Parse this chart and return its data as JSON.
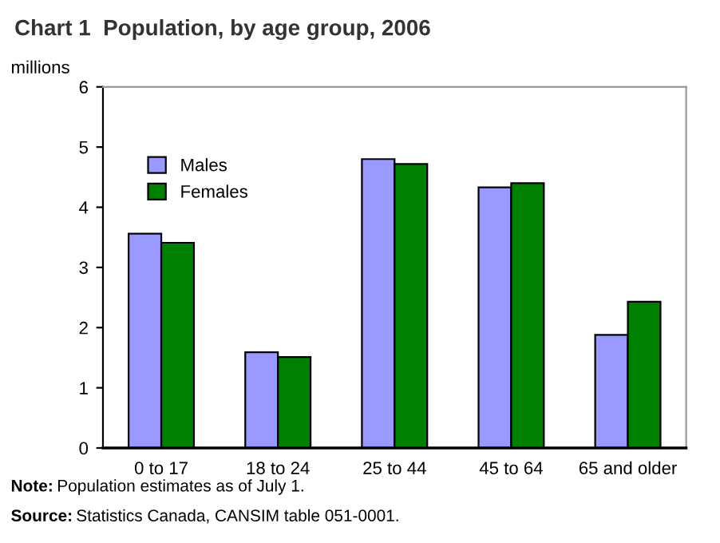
{
  "chart_data": {
    "type": "bar",
    "title": "Chart 1  Population, by age group, 2006",
    "ylabel": "millions",
    "categories": [
      "0 to 17",
      "18 to 24",
      "25 to 44",
      "45 to 64",
      "65 and older"
    ],
    "series": [
      {
        "name": "Males",
        "color": "#9999ff",
        "values": [
          3.56,
          1.59,
          4.8,
          4.33,
          1.88
        ]
      },
      {
        "name": "Females",
        "color": "#008000",
        "values": [
          3.41,
          1.51,
          4.72,
          4.4,
          2.43
        ]
      }
    ],
    "ylim": [
      0,
      6
    ],
    "yticks": [
      0,
      1,
      2,
      3,
      4,
      5,
      6
    ],
    "grid": false,
    "legend": "top left",
    "annotations": [
      "Note: Population estimates as of July 1.",
      "Source: Statistics Canada, CANSIM table 051-0001."
    ]
  }
}
